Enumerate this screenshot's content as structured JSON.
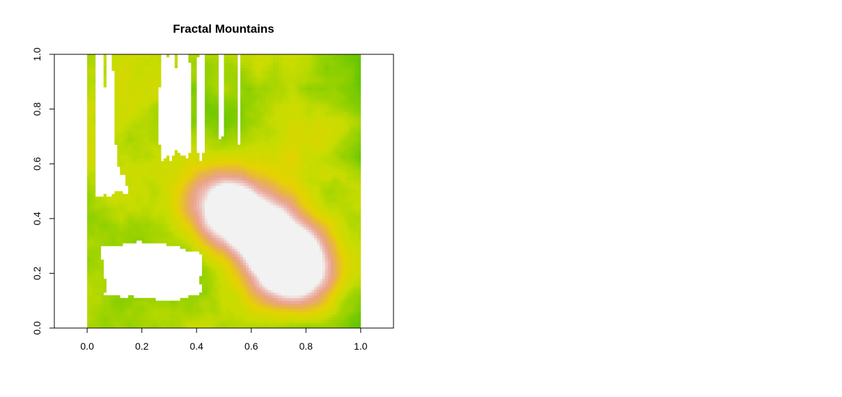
{
  "chart_data": {
    "type": "heatmap",
    "title": "Fractal Mountains",
    "xlabel": "",
    "ylabel": "",
    "xlim": [
      -0.12,
      1.12
    ],
    "ylim": [
      0.0,
      1.0
    ],
    "x_ticks": [
      "0.0",
      "0.2",
      "0.4",
      "0.6",
      "0.8",
      "1.0"
    ],
    "y_ticks": [
      "0.0",
      "0.2",
      "0.4",
      "0.6",
      "0.8",
      "1.0"
    ],
    "grid_resolution": 100,
    "value_range": [
      0.0,
      1.0
    ],
    "below_threshold_rendering": "white (no fill)",
    "colormap": [
      "#00A600",
      "#3BBB00",
      "#7FCC00",
      "#C8DC00",
      "#E6D200",
      "#E8B24A",
      "#EAA28C",
      "#EDBFB8",
      "#F2F2F2"
    ],
    "peaks": [
      {
        "x": 0.72,
        "y": 0.24,
        "value": 0.98
      },
      {
        "x": 0.55,
        "y": 0.4,
        "value": 0.9
      },
      {
        "x": 0.78,
        "y": 0.2,
        "value": 0.96
      },
      {
        "x": 0.5,
        "y": 0.46,
        "value": 0.82
      },
      {
        "x": 0.68,
        "y": 0.33,
        "value": 0.92
      }
    ],
    "water_regions": [
      {
        "x": [
          0.0,
          0.18
        ],
        "y": [
          0.47,
          1.0
        ]
      },
      {
        "x": [
          0.18,
          0.45
        ],
        "y": [
          0.62,
          1.0
        ]
      },
      {
        "x": [
          0.05,
          0.45
        ],
        "y": [
          0.1,
          0.3
        ]
      }
    ],
    "legend": "none",
    "grid": false
  }
}
